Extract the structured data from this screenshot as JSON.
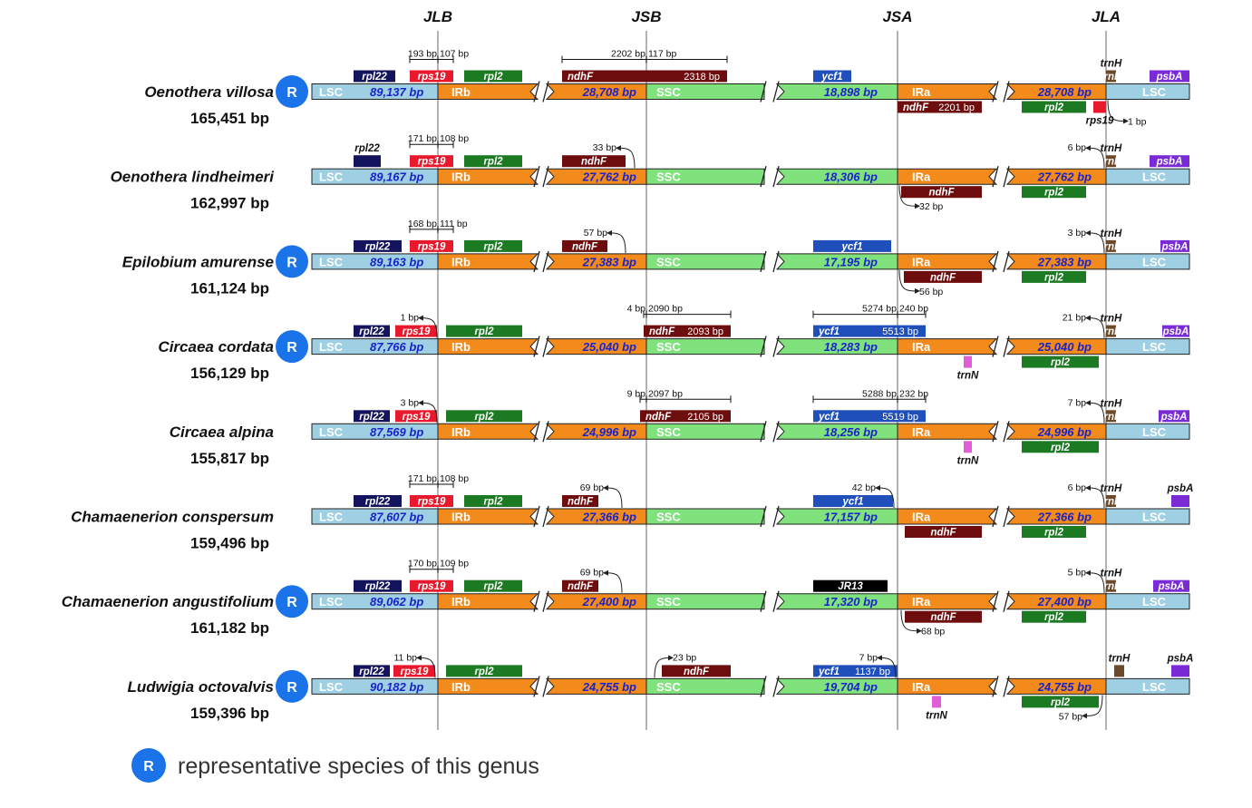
{
  "junctions": [
    "JLB",
    "JSB",
    "JSA",
    "JLA"
  ],
  "region_labels": {
    "lsc": "LSC",
    "irb": "IRb",
    "ssc": "SSC",
    "ira": "IRa"
  },
  "badge_letter": "R",
  "legend": {
    "text": "representative species of this genus"
  },
  "colors": {
    "lsc": "#9ecfe3",
    "ir": "#f28a1c",
    "ssc": "#7fe27c",
    "rpl22": "#14145e",
    "rps19": "#e8192c",
    "rpl2": "#1c7a22",
    "ndhF": "#6e0d0d",
    "ycf1": "#1f4fba",
    "jr13": "#000000",
    "trnH": "#6b4a2b",
    "psbA": "#7a2bd6",
    "trnN": "#e25ed8",
    "badge": "#1a73e8"
  },
  "species": [
    {
      "name": "Oenothera villosa",
      "length": "165,451 bp",
      "representative": true,
      "lsc_bp": "89,137 bp",
      "irb_bp": "28,708 bp",
      "ssc_bp": "18,898 bp",
      "ira_bp": "28,708 bp",
      "genes": [
        {
          "label": "rpl22",
          "color": "rpl22",
          "pos": "above",
          "x1": 390,
          "x2": 436
        },
        {
          "label": "rps19",
          "color": "rps19",
          "pos": "above",
          "x1": 452,
          "x2": 500
        },
        {
          "label": "rpl2",
          "color": "rpl2",
          "pos": "above",
          "x1": 512,
          "x2": 576
        },
        {
          "label": "ndhF",
          "size": "2318 bp",
          "color": "ndhF",
          "pos": "above",
          "x1": 620,
          "x2": 802
        },
        {
          "label": "ycf1",
          "color": "ycf1",
          "pos": "above",
          "x1": 897,
          "x2": 939
        },
        {
          "label": "psbA",
          "color": "psbA",
          "pos": "above",
          "x1": 1268,
          "x2": 1312
        },
        {
          "label": "trnH",
          "color": "trnH",
          "pos": "above-short",
          "x1": 1220,
          "x2": 1231,
          "outlabel": "trnH"
        },
        {
          "label": "ndhF",
          "size": "2201 bp",
          "color": "ndhF",
          "pos": "below",
          "x1": 990,
          "x2": 1083
        },
        {
          "label": "rpl2",
          "color": "rpl2",
          "pos": "below",
          "x1": 1127,
          "x2": 1198
        },
        {
          "label": "",
          "color": "rps19",
          "pos": "below-short",
          "x1": 1206,
          "x2": 1220,
          "outlabel": "rps19"
        }
      ],
      "brackets": [
        {
          "x1": 452,
          "x2": 500,
          "mid": 483,
          "l": "193 bp",
          "r": "107 bp"
        },
        {
          "x1": 620,
          "x2": 802,
          "mid": 713,
          "l": "2202 bp",
          "r": "117 bp"
        }
      ],
      "arrows": [
        {
          "label": "1 bp",
          "side": "below",
          "x": 1222,
          "dir": "right"
        }
      ]
    },
    {
      "name": "Oenothera lindheimeri",
      "length": "162,997 bp",
      "representative": false,
      "lsc_bp": "89,167 bp",
      "irb_bp": "27,762 bp",
      "ssc_bp": "18,306 bp",
      "ira_bp": "27,762 bp",
      "genes": [
        {
          "label": "",
          "color": "rpl22",
          "pos": "above",
          "x1": 390,
          "x2": 420,
          "toplabel": "rpl22"
        },
        {
          "label": "rps19",
          "color": "rps19",
          "pos": "above",
          "x1": 452,
          "x2": 500
        },
        {
          "label": "rpl2",
          "color": "rpl2",
          "pos": "above",
          "x1": 512,
          "x2": 576
        },
        {
          "label": "ndhF",
          "color": "ndhF",
          "pos": "above",
          "x1": 620,
          "x2": 690
        },
        {
          "label": "psbA",
          "color": "psbA",
          "pos": "above",
          "x1": 1268,
          "x2": 1312
        },
        {
          "label": "trnH",
          "color": "trnH",
          "pos": "above-short",
          "x1": 1220,
          "x2": 1231,
          "outlabel": "trnH"
        },
        {
          "label": "ndhF",
          "color": "ndhF",
          "pos": "below",
          "x1": 994,
          "x2": 1083
        },
        {
          "label": "rpl2",
          "color": "rpl2",
          "pos": "below",
          "x1": 1127,
          "x2": 1198
        }
      ],
      "brackets": [
        {
          "x1": 452,
          "x2": 500,
          "mid": 483,
          "l": "171 bp",
          "r": "108 bp"
        }
      ],
      "arrows": [
        {
          "label": "33 bp",
          "side": "above",
          "x": 700,
          "dir": "left"
        },
        {
          "label": "6 bp",
          "side": "above",
          "x": 1218,
          "dir": "left"
        },
        {
          "label": "32 bp",
          "side": "below",
          "x": 992,
          "dir": "right"
        }
      ]
    },
    {
      "name": "Epilobium amurense",
      "length": "161,124 bp",
      "representative": true,
      "lsc_bp": "89,163 bp",
      "irb_bp": "27,383 bp",
      "ssc_bp": "17,195 bp",
      "ira_bp": "27,383 bp",
      "genes": [
        {
          "label": "rpl22",
          "color": "rpl22",
          "pos": "above",
          "x1": 390,
          "x2": 443
        },
        {
          "label": "rps19",
          "color": "rps19",
          "pos": "above",
          "x1": 452,
          "x2": 500
        },
        {
          "label": "rpl2",
          "color": "rpl2",
          "pos": "above",
          "x1": 512,
          "x2": 576
        },
        {
          "label": "ndhF",
          "color": "ndhF",
          "pos": "above",
          "x1": 620,
          "x2": 670
        },
        {
          "label": "ycf1",
          "color": "ycf1",
          "pos": "above",
          "x1": 897,
          "x2": 983
        },
        {
          "label": "psbA",
          "color": "psbA",
          "pos": "above",
          "x1": 1280,
          "x2": 1312
        },
        {
          "label": "trnH",
          "color": "trnH",
          "pos": "above-short",
          "x1": 1220,
          "x2": 1231,
          "outlabel": "trnH"
        },
        {
          "label": "ndhF",
          "color": "ndhF",
          "pos": "below",
          "x1": 997,
          "x2": 1083
        },
        {
          "label": "rpl2",
          "color": "rpl2",
          "pos": "below",
          "x1": 1127,
          "x2": 1198
        }
      ],
      "brackets": [
        {
          "x1": 452,
          "x2": 500,
          "mid": 483,
          "l": "168 bp",
          "r": "111 bp"
        }
      ],
      "arrows": [
        {
          "label": "57 bp",
          "side": "above",
          "x": 690,
          "dir": "left"
        },
        {
          "label": "3 bp",
          "side": "above",
          "x": 1218,
          "dir": "left"
        },
        {
          "label": "56 bp",
          "side": "below",
          "x": 992,
          "dir": "right"
        }
      ]
    },
    {
      "name": "Circaea cordata",
      "length": "156,129 bp",
      "representative": true,
      "lsc_bp": "87,766 bp",
      "irb_bp": "25,040 bp",
      "ssc_bp": "18,283 bp",
      "ira_bp": "25,040 bp",
      "genes": [
        {
          "label": "rpl22",
          "color": "rpl22",
          "pos": "above",
          "x1": 390,
          "x2": 430
        },
        {
          "label": "rps19",
          "color": "rps19",
          "pos": "above",
          "x1": 436,
          "x2": 482
        },
        {
          "label": "rpl2",
          "color": "rpl2",
          "pos": "above",
          "x1": 492,
          "x2": 576
        },
        {
          "label": "ndhF",
          "size": "2093 bp",
          "color": "ndhF",
          "pos": "above",
          "x1": 710,
          "x2": 806
        },
        {
          "label": "ycf1",
          "size": "5513 bp",
          "color": "ycf1",
          "pos": "above",
          "x1": 897,
          "x2": 1021
        },
        {
          "label": "psbA",
          "color": "psbA",
          "pos": "above",
          "x1": 1282,
          "x2": 1312
        },
        {
          "label": "trnH",
          "color": "trnH",
          "pos": "above-short",
          "x1": 1220,
          "x2": 1231,
          "outlabel": "trnH"
        },
        {
          "label": "",
          "color": "trnN",
          "pos": "below-short",
          "x1": 1063,
          "x2": 1072,
          "outlabel": "trnN"
        },
        {
          "label": "rpl2",
          "color": "rpl2",
          "pos": "below",
          "x1": 1127,
          "x2": 1212
        }
      ],
      "brackets": [
        {
          "x1": 710,
          "x2": 806,
          "mid": 713,
          "l": "4 bp",
          "r": "2090 bp"
        },
        {
          "x1": 897,
          "x2": 1021,
          "mid": 990,
          "l": "5274 bp",
          "r": "240 bp"
        }
      ],
      "arrows": [
        {
          "label": "1 bp",
          "side": "above",
          "x": 482,
          "dir": "left"
        },
        {
          "label": "21 bp",
          "side": "above",
          "x": 1218,
          "dir": "left"
        }
      ]
    },
    {
      "name": "Circaea alpina",
      "length": "155,817 bp",
      "representative": false,
      "lsc_bp": "87,569 bp",
      "irb_bp": "24,996 bp",
      "ssc_bp": "18,256 bp",
      "ira_bp": "24,996 bp",
      "genes": [
        {
          "label": "rpl22",
          "color": "rpl22",
          "pos": "above",
          "x1": 390,
          "x2": 430
        },
        {
          "label": "rps19",
          "color": "rps19",
          "pos": "above",
          "x1": 436,
          "x2": 482
        },
        {
          "label": "rpl2",
          "color": "rpl2",
          "pos": "above",
          "x1": 492,
          "x2": 576
        },
        {
          "label": "ndhF",
          "size": "2105 bp",
          "color": "ndhF",
          "pos": "above",
          "x1": 706,
          "x2": 806
        },
        {
          "label": "ycf1",
          "size": "5519 bp",
          "color": "ycf1",
          "pos": "above",
          "x1": 897,
          "x2": 1021
        },
        {
          "label": "psbA",
          "color": "psbA",
          "pos": "above",
          "x1": 1278,
          "x2": 1312
        },
        {
          "label": "trnH",
          "color": "trnH",
          "pos": "above-short",
          "x1": 1220,
          "x2": 1231,
          "outlabel": "trnH"
        },
        {
          "label": "",
          "color": "trnN",
          "pos": "below-short",
          "x1": 1063,
          "x2": 1072,
          "outlabel": "trnN"
        },
        {
          "label": "rpl2",
          "color": "rpl2",
          "pos": "below",
          "x1": 1127,
          "x2": 1212
        }
      ],
      "brackets": [
        {
          "x1": 706,
          "x2": 806,
          "mid": 713,
          "l": "9 bp",
          "r": "2097 bp"
        },
        {
          "x1": 897,
          "x2": 1021,
          "mid": 990,
          "l": "5288 bp",
          "r": "232 bp"
        }
      ],
      "arrows": [
        {
          "label": "3 bp",
          "side": "above",
          "x": 482,
          "dir": "left"
        },
        {
          "label": "7 bp",
          "side": "above",
          "x": 1218,
          "dir": "left"
        }
      ]
    },
    {
      "name": "Chamaenerion conspersum",
      "length": "159,496 bp",
      "representative": false,
      "lsc_bp": "87,607 bp",
      "irb_bp": "27,366 bp",
      "ssc_bp": "17,157 bp",
      "ira_bp": "27,366 bp",
      "genes": [
        {
          "label": "rpl22",
          "color": "rpl22",
          "pos": "above",
          "x1": 390,
          "x2": 443
        },
        {
          "label": "rps19",
          "color": "rps19",
          "pos": "above",
          "x1": 452,
          "x2": 500
        },
        {
          "label": "rpl2",
          "color": "rpl2",
          "pos": "above",
          "x1": 512,
          "x2": 576
        },
        {
          "label": "ndhF",
          "color": "ndhF",
          "pos": "above",
          "x1": 620,
          "x2": 660
        },
        {
          "label": "ycf1",
          "color": "ycf1",
          "pos": "above",
          "x1": 897,
          "x2": 985
        },
        {
          "label": "",
          "color": "psbA",
          "pos": "above",
          "x1": 1292,
          "x2": 1312,
          "toplabel": "psbA"
        },
        {
          "label": "trnH",
          "color": "trnH",
          "pos": "above-short",
          "x1": 1220,
          "x2": 1231,
          "outlabel": "trnH"
        },
        {
          "label": "ndhF",
          "color": "ndhF",
          "pos": "below",
          "x1": 998,
          "x2": 1083
        },
        {
          "label": "rpl2",
          "color": "rpl2",
          "pos": "below",
          "x1": 1127,
          "x2": 1198
        }
      ],
      "brackets": [
        {
          "x1": 452,
          "x2": 500,
          "mid": 483,
          "l": "171 bp",
          "r": "108 bp"
        }
      ],
      "arrows": [
        {
          "label": "69 bp",
          "side": "above",
          "x": 686,
          "dir": "left"
        },
        {
          "label": "42 bp",
          "side": "above",
          "x": 986,
          "dir": "left"
        },
        {
          "label": "6 bp",
          "side": "above",
          "x": 1218,
          "dir": "left"
        }
      ]
    },
    {
      "name": "Chamaenerion angustifolium",
      "length": "161,182 bp",
      "representative": true,
      "lsc_bp": "89,062 bp",
      "irb_bp": "27,400 bp",
      "ssc_bp": "17,320 bp",
      "ira_bp": "27,400 bp",
      "genes": [
        {
          "label": "rpl22",
          "color": "rpl22",
          "pos": "above",
          "x1": 390,
          "x2": 443
        },
        {
          "label": "rps19",
          "color": "rps19",
          "pos": "above",
          "x1": 452,
          "x2": 500
        },
        {
          "label": "rpl2",
          "color": "rpl2",
          "pos": "above",
          "x1": 512,
          "x2": 576
        },
        {
          "label": "ndhF",
          "color": "ndhF",
          "pos": "above",
          "x1": 620,
          "x2": 660
        },
        {
          "label": "JR13",
          "color": "jr13",
          "pos": "above",
          "x1": 897,
          "x2": 979
        },
        {
          "label": "psbA",
          "color": "psbA",
          "pos": "above",
          "x1": 1272,
          "x2": 1312
        },
        {
          "label": "trnH",
          "color": "trnH",
          "pos": "above-short",
          "x1": 1220,
          "x2": 1231,
          "outlabel": "trnH"
        },
        {
          "label": "ndhF",
          "color": "ndhF",
          "pos": "below",
          "x1": 998,
          "x2": 1083
        },
        {
          "label": "rpl2",
          "color": "rpl2",
          "pos": "below",
          "x1": 1127,
          "x2": 1198
        }
      ],
      "brackets": [
        {
          "x1": 452,
          "x2": 500,
          "mid": 483,
          "l": "170 bp",
          "r": "109 bp"
        }
      ],
      "arrows": [
        {
          "label": "69 bp",
          "side": "above",
          "x": 686,
          "dir": "left"
        },
        {
          "label": "5 bp",
          "side": "above",
          "x": 1218,
          "dir": "left"
        },
        {
          "label": "68 bp",
          "side": "below",
          "x": 994,
          "dir": "right"
        }
      ]
    },
    {
      "name": "Ludwigia octovalvis",
      "length": "159,396 bp",
      "representative": true,
      "lsc_bp": "90,182 bp",
      "irb_bp": "24,755 bp",
      "ssc_bp": "19,704 bp",
      "ira_bp": "24,755 bp",
      "genes": [
        {
          "label": "rpl22",
          "color": "rpl22",
          "pos": "above",
          "x1": 390,
          "x2": 430
        },
        {
          "label": "rps19",
          "color": "rps19",
          "pos": "above",
          "x1": 434,
          "x2": 480
        },
        {
          "label": "rpl2",
          "color": "rpl2",
          "pos": "above",
          "x1": 492,
          "x2": 576
        },
        {
          "label": "ndhF",
          "color": "ndhF",
          "pos": "above",
          "x1": 730,
          "x2": 806
        },
        {
          "label": "ycf1",
          "size": "1137 bp",
          "color": "ycf1",
          "pos": "above",
          "x1": 897,
          "x2": 990
        },
        {
          "label": "",
          "color": "psbA",
          "pos": "above",
          "x1": 1292,
          "x2": 1312,
          "toplabel": "psbA"
        },
        {
          "label": "",
          "color": "trnH",
          "pos": "above-short",
          "x1": 1229,
          "x2": 1240,
          "outlabel": "trnH"
        },
        {
          "label": "",
          "color": "trnN",
          "pos": "below-short",
          "x1": 1028,
          "x2": 1038,
          "outlabel": "trnN"
        },
        {
          "label": "rpl2",
          "color": "rpl2",
          "pos": "below",
          "x1": 1127,
          "x2": 1212
        }
      ],
      "brackets": [],
      "arrows": [
        {
          "label": "11 bp",
          "side": "above",
          "x": 480,
          "dir": "left"
        },
        {
          "label": "23 bp",
          "side": "above",
          "x": 722,
          "dir": "right"
        },
        {
          "label": "7 bp",
          "side": "above",
          "x": 988,
          "dir": "left"
        },
        {
          "label": "57 bp",
          "side": "below",
          "x": 1216,
          "dir": "left"
        }
      ]
    }
  ]
}
